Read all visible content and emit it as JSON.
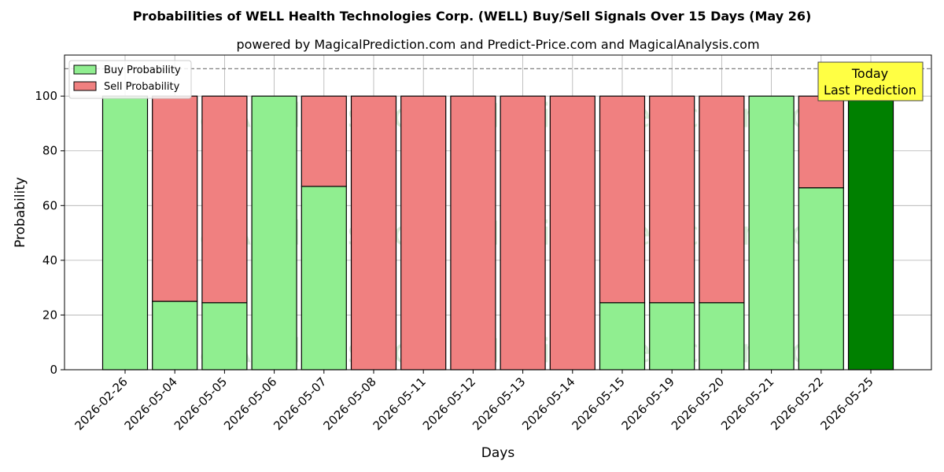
{
  "chart_data": {
    "type": "bar",
    "stacked": true,
    "title": "Probabilities of WELL Health Technologies Corp. (WELL) Buy/Sell Signals Over 15 Days (May 26)",
    "subtitle": "powered by MagicalPrediction.com and Predict-Price.com and MagicalAnalysis.com",
    "xlabel": "Days",
    "ylabel": "Probability",
    "ylim": [
      0,
      115
    ],
    "yticks": [
      0,
      20,
      40,
      60,
      80,
      100
    ],
    "grid": true,
    "legend_position": "top-left",
    "categories": [
      "2026-02-26",
      "2026-05-04",
      "2026-05-05",
      "2026-05-06",
      "2026-05-07",
      "2026-05-08",
      "2026-05-11",
      "2026-05-12",
      "2026-05-13",
      "2026-05-14",
      "2026-05-15",
      "2026-05-19",
      "2026-05-20",
      "2026-05-21",
      "2026-05-22",
      "2026-05-25"
    ],
    "series": [
      {
        "name": "Buy Probability",
        "color": "#90ee90",
        "values": [
          100,
          25,
          24.5,
          100,
          67,
          0,
          0,
          0,
          0,
          0,
          24.5,
          24.5,
          24.5,
          100,
          66.5,
          100
        ]
      },
      {
        "name": "Sell Probability",
        "color": "#f08080",
        "values": [
          0,
          75,
          75.5,
          0,
          33,
          100,
          100,
          100,
          100,
          100,
          75.5,
          75.5,
          75.5,
          0,
          33.5,
          0
        ]
      }
    ],
    "highlight": {
      "index": 15,
      "color": "#008000"
    },
    "reference_line": {
      "y": 110,
      "style": "dashed",
      "color": "#808080"
    },
    "annotation": {
      "lines": [
        "Today",
        "Last Prediction"
      ],
      "background": "#ffff44"
    },
    "watermarks": [
      "MagicalAnalysis.com",
      "MagicalPrediction.com"
    ]
  }
}
